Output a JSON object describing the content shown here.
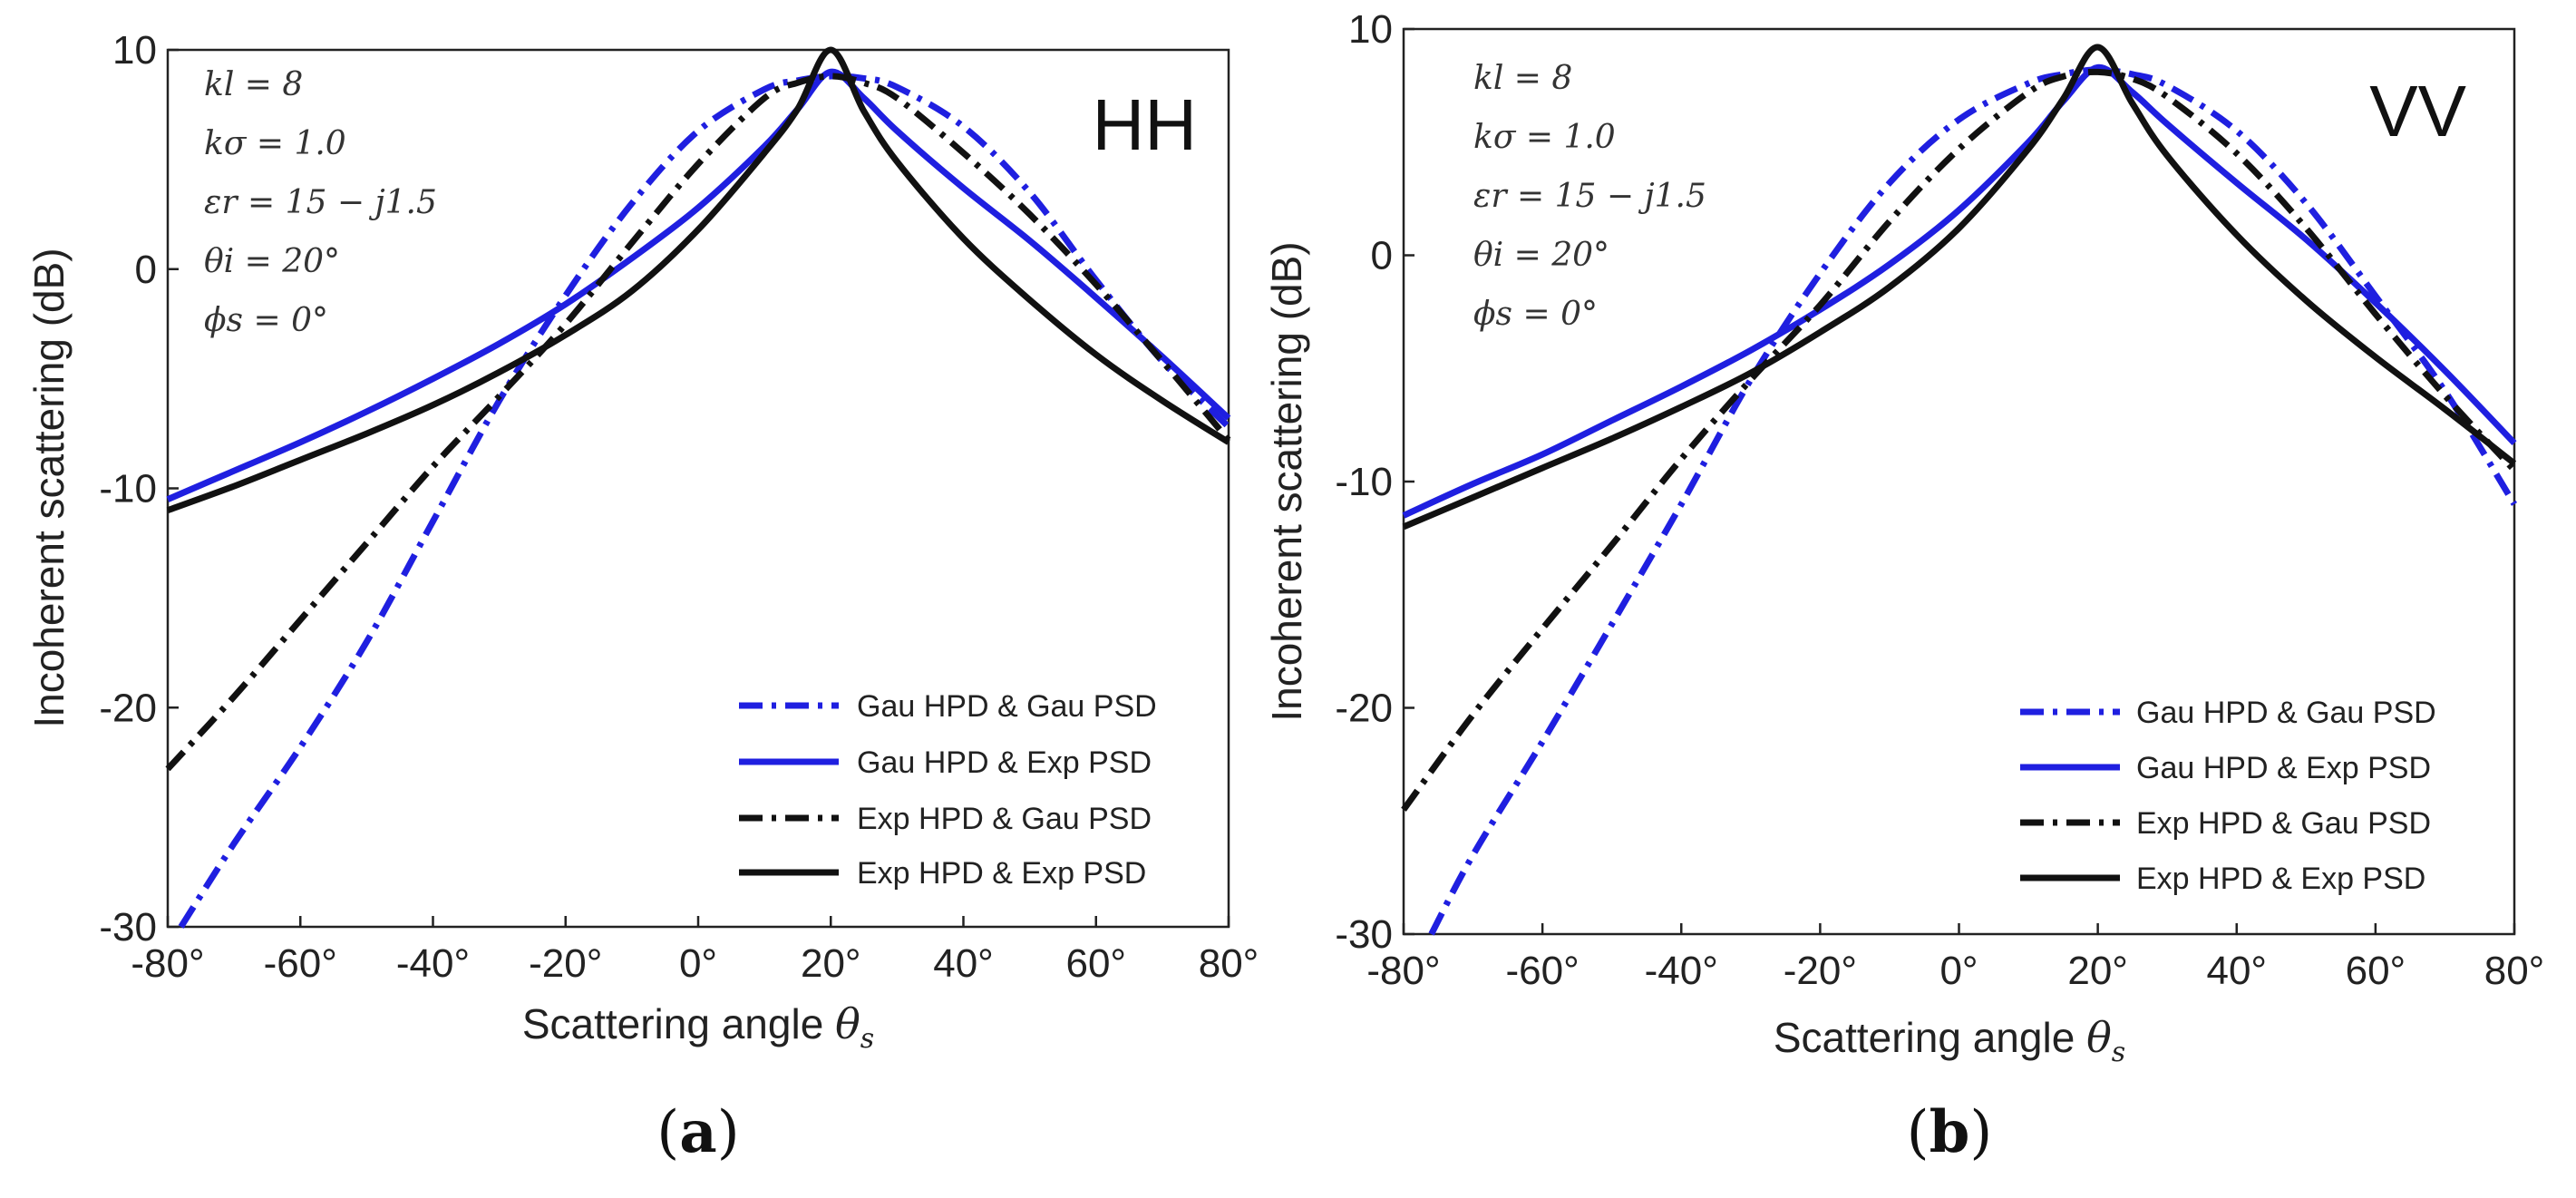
{
  "chart_data": [
    {
      "type": "line",
      "panel_caption": "a",
      "corner_label": "HH",
      "xlabel": "Scattering angle ",
      "xlabel_symbol": "θ",
      "xlabel_subscript": "s",
      "ylabel": "Incoherent scattering (dB)",
      "xlim": [
        -80,
        80
      ],
      "ylim": [
        -30,
        10
      ],
      "x_ticks": [
        -80,
        -60,
        -40,
        -20,
        0,
        20,
        40,
        60,
        80
      ],
      "x_tick_labels": [
        "-80°",
        "-60°",
        "-40°",
        "-20°",
        "0°",
        "20°",
        "40°",
        "60°",
        "80°"
      ],
      "y_ticks": [
        -30,
        -20,
        -10,
        0,
        10
      ],
      "y_tick_labels": [
        "-30",
        "-20",
        "-10",
        "0",
        "10"
      ],
      "annotations": [
        "kl = 8",
        "kσ = 1.0",
        "εr = 15 − j1.5",
        "θi = 20°",
        "ϕs = 0°"
      ],
      "series": [
        {
          "name": "Gau HPD & Gau PSD",
          "color": "#1f1fe0",
          "style": "dashdot",
          "x": [
            -78,
            -70,
            -60,
            -50,
            -40,
            -30,
            -20,
            -10,
            0,
            10,
            15,
            20,
            25,
            30,
            40,
            50,
            60,
            70,
            80
          ],
          "y": [
            -30,
            -26.2,
            -21.8,
            -17,
            -11.5,
            -6,
            -1.2,
            3,
            6.3,
            8.2,
            8.6,
            8.8,
            8.7,
            8.3,
            6.5,
            3.5,
            -0.5,
            -4.2,
            -7.2
          ]
        },
        {
          "name": "Gau HPD & Exp PSD",
          "color": "#1f1fe0",
          "style": "solid",
          "x": [
            -80,
            -70,
            -60,
            -50,
            -40,
            -30,
            -20,
            -10,
            0,
            10,
            15,
            20,
            25,
            30,
            40,
            50,
            60,
            70,
            80
          ],
          "y": [
            -10.5,
            -9.2,
            -7.9,
            -6.5,
            -5,
            -3.4,
            -1.6,
            0.5,
            2.8,
            5.6,
            7.3,
            9,
            7.8,
            6.3,
            3.7,
            1.3,
            -1.3,
            -4,
            -6.8
          ]
        },
        {
          "name": "Exp HPD & Gau PSD",
          "color": "#111111",
          "style": "dashdot",
          "x": [
            -80,
            -70,
            -60,
            -50,
            -40,
            -30,
            -20,
            -10,
            0,
            10,
            15,
            20,
            25,
            30,
            40,
            50,
            60,
            70,
            80
          ],
          "y": [
            -22.8,
            -19.5,
            -16,
            -12.5,
            -9,
            -5.8,
            -2.5,
            1.2,
            4.8,
            7.8,
            8.5,
            8.8,
            8.5,
            7.8,
            5.3,
            2.5,
            -0.7,
            -4.2,
            -7.8
          ]
        },
        {
          "name": "Exp HPD & Exp PSD",
          "color": "#111111",
          "style": "solid",
          "x": [
            -80,
            -70,
            -60,
            -50,
            -40,
            -30,
            -20,
            -10,
            0,
            10,
            15,
            20,
            25,
            30,
            40,
            50,
            60,
            70,
            80
          ],
          "y": [
            -11,
            -9.9,
            -8.7,
            -7.5,
            -6.2,
            -4.7,
            -3,
            -1,
            1.8,
            5.3,
            7.3,
            10,
            7.2,
            4.9,
            1.4,
            -1.4,
            -3.9,
            -6,
            -7.9
          ]
        }
      ]
    },
    {
      "type": "line",
      "panel_caption": "b",
      "corner_label": "VV",
      "xlabel": "Scattering angle ",
      "xlabel_symbol": "θ",
      "xlabel_subscript": "s",
      "ylabel": "Incoherent scattering (dB)",
      "xlim": [
        -80,
        80
      ],
      "ylim": [
        -30,
        10
      ],
      "x_ticks": [
        -80,
        -60,
        -40,
        -20,
        0,
        20,
        40,
        60,
        80
      ],
      "x_tick_labels": [
        "-80°",
        "-60°",
        "-40°",
        "-20°",
        "0°",
        "20°",
        "40°",
        "60°",
        "80°"
      ],
      "y_ticks": [
        -30,
        -20,
        -10,
        0,
        10
      ],
      "y_tick_labels": [
        "-30",
        "-20",
        "-10",
        "0",
        "10"
      ],
      "annotations": [
        "kl = 8",
        "kσ = 1.0",
        "εr = 15 − j1.5",
        "θi = 20°",
        "ϕs = 0°"
      ],
      "series": [
        {
          "name": "Gau HPD & Gau PSD",
          "color": "#1f1fe0",
          "style": "dashdot",
          "x": [
            -76,
            -70,
            -60,
            -50,
            -40,
            -30,
            -20,
            -10,
            0,
            10,
            15,
            20,
            25,
            30,
            40,
            50,
            60,
            70,
            80
          ],
          "y": [
            -30,
            -26.5,
            -21.5,
            -16.3,
            -11,
            -5.5,
            -0.8,
            3.2,
            6,
            7.6,
            8,
            8.2,
            8,
            7.5,
            5.5,
            2.3,
            -1.8,
            -6,
            -11
          ]
        },
        {
          "name": "Gau HPD & Exp PSD",
          "color": "#1f1fe0",
          "style": "solid",
          "x": [
            -80,
            -70,
            -60,
            -50,
            -40,
            -30,
            -20,
            -10,
            0,
            10,
            15,
            20,
            25,
            30,
            40,
            50,
            60,
            70,
            80
          ],
          "y": [
            -11.5,
            -10.1,
            -8.8,
            -7.3,
            -5.8,
            -4.2,
            -2.4,
            -0.4,
            2,
            5,
            6.8,
            8.3,
            7.2,
            5.8,
            3.2,
            0.7,
            -2.1,
            -5.1,
            -8.3
          ]
        },
        {
          "name": "Exp HPD & Gau PSD",
          "color": "#111111",
          "style": "dashdot",
          "x": [
            -80,
            -70,
            -60,
            -50,
            -40,
            -30,
            -20,
            -10,
            0,
            10,
            15,
            20,
            25,
            30,
            40,
            50,
            60,
            70,
            80
          ],
          "y": [
            -24.5,
            -20.3,
            -16.5,
            -12.8,
            -9,
            -5.5,
            -2.2,
            1.5,
            4.7,
            7.2,
            7.9,
            8.1,
            7.8,
            7,
            4.5,
            1.2,
            -2.6,
            -6.2,
            -9.5
          ]
        },
        {
          "name": "Exp HPD & Exp PSD",
          "color": "#111111",
          "style": "solid",
          "x": [
            -80,
            -70,
            -60,
            -50,
            -40,
            -30,
            -20,
            -10,
            0,
            10,
            15,
            20,
            25,
            30,
            40,
            50,
            60,
            70,
            80
          ],
          "y": [
            -12,
            -10.7,
            -9.4,
            -8.1,
            -6.7,
            -5.2,
            -3.4,
            -1.4,
            1.2,
            4.7,
            6.9,
            9.2,
            6.7,
            4.4,
            0.9,
            -2,
            -4.5,
            -6.8,
            -9.2
          ]
        }
      ]
    }
  ]
}
